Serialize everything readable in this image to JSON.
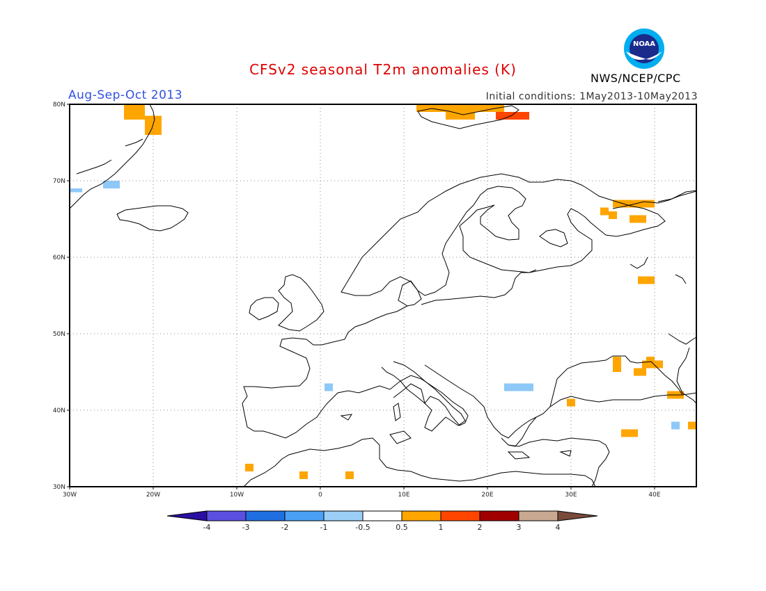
{
  "header": {
    "title": "CFSv2 seasonal T2m anomalies (K)",
    "period": "Aug-Sep-Oct 2013",
    "initial_conditions": "Initial conditions: 1May2013-10May2013",
    "agency": "NWS/NCEP/CPC",
    "logo_text": "NOAA"
  },
  "map": {
    "projection": "lat-lon",
    "lon_range": [
      -30,
      45
    ],
    "lat_range": [
      30,
      80
    ],
    "lon_ticks": [
      "30W",
      "20W",
      "10W",
      "0",
      "10E",
      "20E",
      "30E",
      "40E"
    ],
    "lat_ticks": [
      "30N",
      "40N",
      "50N",
      "60N",
      "70N",
      "80N"
    ],
    "grid": true,
    "colors": {
      "cool1": "#8ec8f8",
      "warm1": "#ffa500",
      "warm2": "#ff4500",
      "coast": "#000000"
    }
  },
  "colorbar": {
    "tick_labels": [
      "-4",
      "-3",
      "-2",
      "-1",
      "-0.5",
      "0.5",
      "1",
      "2",
      "3",
      "4"
    ],
    "colors": [
      "#2a0fa0",
      "#5a4fe0",
      "#1f6fe0",
      "#4aa0f5",
      "#9ccff7",
      "#ffffff",
      "#ffa500",
      "#ff4500",
      "#a00000",
      "#c8a890",
      "#7a4a3a"
    ]
  },
  "anomaly_cells": [
    {
      "lon": -30,
      "lat": 68.5,
      "lon2": -28.5,
      "lat2": 69.0,
      "class": "-1 to -0.5"
    },
    {
      "lon": -26.0,
      "lat": 69.0,
      "lon2": -24.0,
      "lat2": 70.0,
      "class": "-1 to -0.5"
    },
    {
      "lon": -23.5,
      "lat": 78.0,
      "lon2": -21.0,
      "lat2": 80.0,
      "class": "0.5 to 1"
    },
    {
      "lon": -21.0,
      "lat": 76.0,
      "lon2": -19.0,
      "lat2": 78.5,
      "class": "0.5 to 1"
    },
    {
      "lon": 11.5,
      "lat": 79.0,
      "lon2": 15.0,
      "lat2": 80.0,
      "class": "0.5 to 1"
    },
    {
      "lon": 15.0,
      "lat": 78.0,
      "lon2": 18.5,
      "lat2": 80.0,
      "class": "0.5 to 1"
    },
    {
      "lon": 18.5,
      "lat": 79.0,
      "lon2": 22.0,
      "lat2": 80.0,
      "class": "0.5 to 1"
    },
    {
      "lon": 21.0,
      "lat": 78.0,
      "lon2": 25.0,
      "lat2": 79.0,
      "class": "1 to 2"
    },
    {
      "lon": 33.5,
      "lat": 65.5,
      "lon2": 34.5,
      "lat2": 66.5,
      "class": "0.5 to 1"
    },
    {
      "lon": 35.0,
      "lat": 66.5,
      "lon2": 40.0,
      "lat2": 67.5,
      "class": "0.5 to 1"
    },
    {
      "lon": 34.5,
      "lat": 65.0,
      "lon2": 35.5,
      "lat2": 66.0,
      "class": "0.5 to 1"
    },
    {
      "lon": 37.0,
      "lat": 64.5,
      "lon2": 39.0,
      "lat2": 65.5,
      "class": "0.5 to 1"
    },
    {
      "lon": 38.0,
      "lat": 56.5,
      "lon2": 40.0,
      "lat2": 57.5,
      "class": "0.5 to 1"
    },
    {
      "lon": 35.0,
      "lat": 45.0,
      "lon2": 36.0,
      "lat2": 47.0,
      "class": "0.5 to 1"
    },
    {
      "lon": 37.5,
      "lat": 44.5,
      "lon2": 39.0,
      "lat2": 45.5,
      "class": "0.5 to 1"
    },
    {
      "lon": 38.5,
      "lat": 45.5,
      "lon2": 41.0,
      "lat2": 46.5,
      "class": "0.5 to 1"
    },
    {
      "lon": 39.0,
      "lat": 46.5,
      "lon2": 40.0,
      "lat2": 47.0,
      "class": "0.5 to 1"
    },
    {
      "lon": 41.5,
      "lat": 41.5,
      "lon2": 43.5,
      "lat2": 42.5,
      "class": "0.5 to 1"
    },
    {
      "lon": 29.5,
      "lat": 40.5,
      "lon2": 30.5,
      "lat2": 41.5,
      "class": "0.5 to 1"
    },
    {
      "lon": 36.0,
      "lat": 36.5,
      "lon2": 38.0,
      "lat2": 37.5,
      "class": "0.5 to 1"
    },
    {
      "lon": 44.0,
      "lat": 37.5,
      "lon2": 45.0,
      "lat2": 38.5,
      "class": "0.5 to 1"
    },
    {
      "lon": 42.0,
      "lat": 37.5,
      "lon2": 43.0,
      "lat2": 38.5,
      "class": "-1 to -0.5"
    },
    {
      "lon": 22.0,
      "lat": 42.5,
      "lon2": 25.5,
      "lat2": 43.5,
      "class": "-1 to -0.5"
    },
    {
      "lon": 0.5,
      "lat": 42.5,
      "lon2": 1.5,
      "lat2": 43.5,
      "class": "-1 to -0.5"
    },
    {
      "lon": -9.0,
      "lat": 32.0,
      "lon2": -8.0,
      "lat2": 33.0,
      "class": "0.5 to 1"
    },
    {
      "lon": -2.5,
      "lat": 31.0,
      "lon2": -1.5,
      "lat2": 32.0,
      "class": "0.5 to 1"
    },
    {
      "lon": 3.0,
      "lat": 31.0,
      "lon2": 4.0,
      "lat2": 32.0,
      "class": "0.5 to 1"
    }
  ]
}
